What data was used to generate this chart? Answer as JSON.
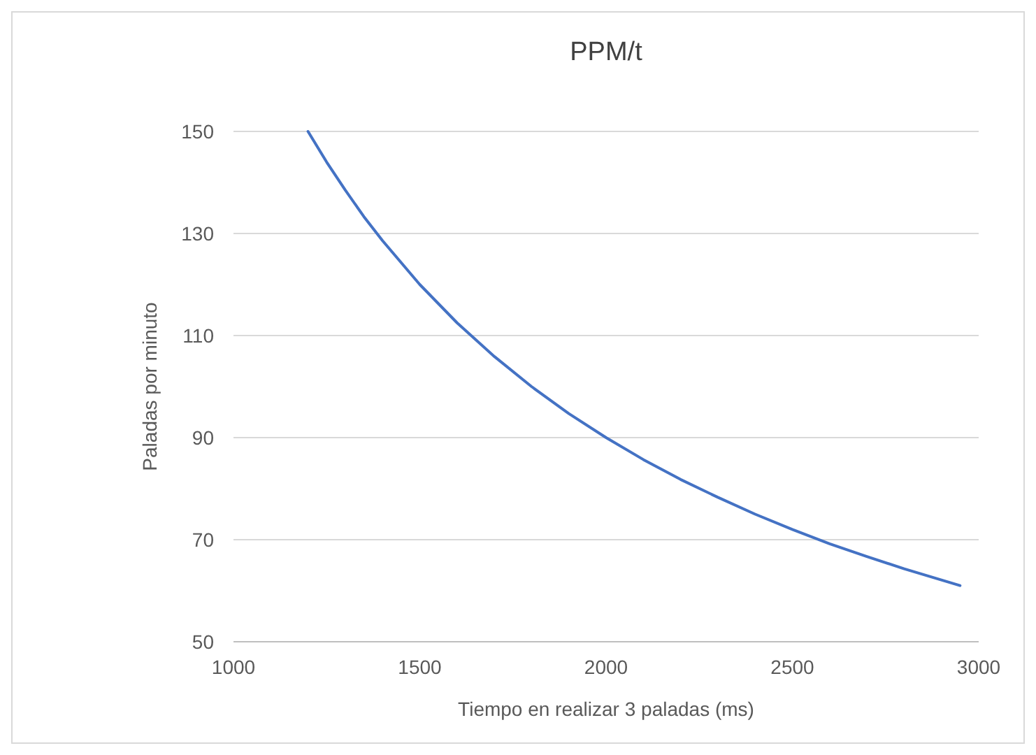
{
  "chart_data": {
    "type": "line",
    "title": "PPM/t",
    "xlabel": "Tiempo en realizar 3 paladas (ms)",
    "ylabel": "Paladas por minuto",
    "x": [
      1200,
      1250,
      1300,
      1350,
      1400,
      1500,
      1600,
      1700,
      1800,
      1900,
      2000,
      2100,
      2200,
      2300,
      2400,
      2500,
      2600,
      2700,
      2800,
      2900,
      2950
    ],
    "series": [
      {
        "color": "#4472c4",
        "values": [
          150,
          144,
          138.5,
          133.3,
          128.6,
          120,
          112.5,
          105.9,
          100,
          94.7,
          90,
          85.7,
          81.8,
          78.3,
          75,
          72,
          69.2,
          66.7,
          64.3,
          62.1,
          61
        ]
      }
    ],
    "xlim": [
      1000,
      3000
    ],
    "xticks": [
      1000,
      1500,
      2000,
      2500,
      3000
    ],
    "ylim": [
      50,
      150
    ],
    "yticks": [
      50,
      70,
      90,
      110,
      130,
      150
    ],
    "grid": "y",
    "marker": "none",
    "line_style": "solid"
  }
}
